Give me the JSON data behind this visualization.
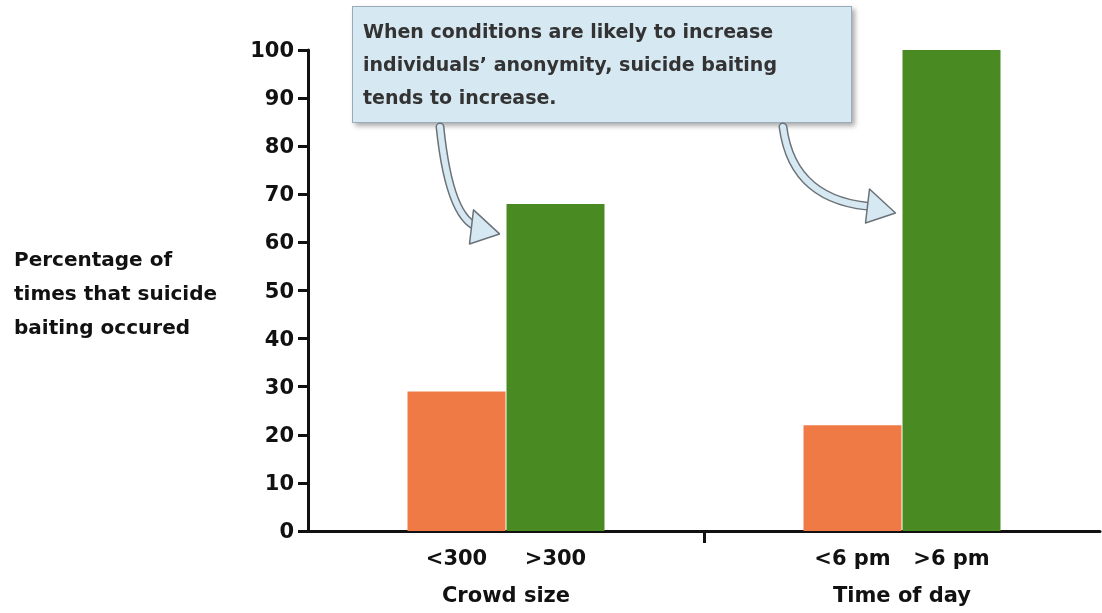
{
  "chart_data": {
    "type": "bar",
    "ylabel": "Percentage of times that suicide baiting occured",
    "categories": [
      "<300",
      ">300",
      "<6 pm",
      ">6 pm"
    ],
    "values": [
      29,
      68,
      22,
      100
    ],
    "colors": [
      "#f07a45",
      "#4a8a22",
      "#f07a45",
      "#4a8a22"
    ],
    "ylim": [
      0,
      100
    ],
    "yticks": [
      0,
      10,
      20,
      30,
      40,
      50,
      60,
      70,
      80,
      90,
      100
    ],
    "annotations": [
      "When conditions are likely to increase individuals’ anonymity, suicide baiting tends to increase.",
      "Crowd size",
      "Time of day"
    ],
    "grid": false
  }
}
